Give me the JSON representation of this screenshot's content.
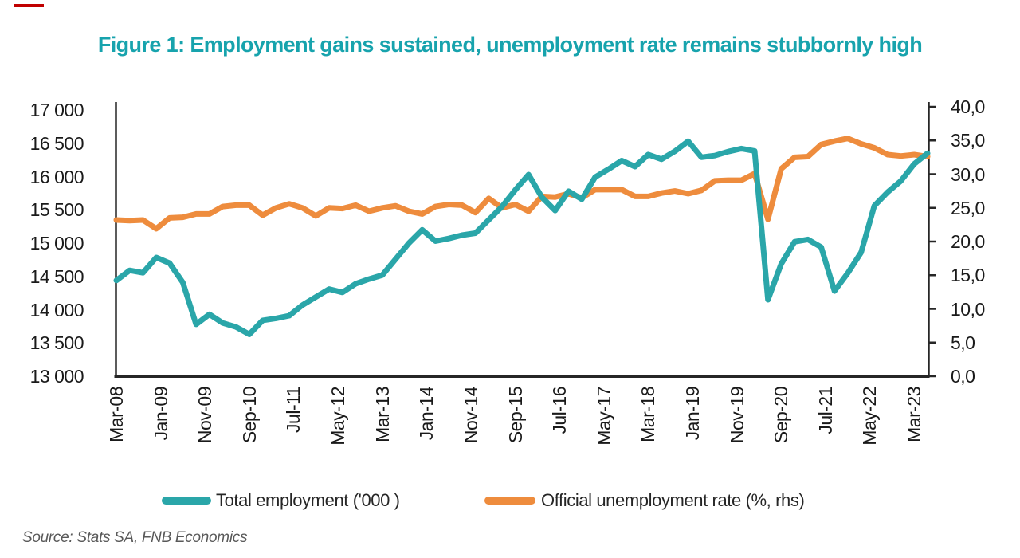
{
  "page": {
    "top_left_dash_color": "#C00000",
    "background": "#FFFFFF"
  },
  "title": {
    "text": "Figure 1: Employment gains sustained, unemployment rate remains stubbornly high",
    "color": "#17A3AD"
  },
  "source_note": "Source: Stats SA, FNB Economics",
  "legend": {
    "items": [
      {
        "label": "Total employment ('000 )",
        "color": "#2AA6A9"
      },
      {
        "label": "Official unemployment rate (%, rhs)",
        "color": "#EE8C3D"
      }
    ]
  },
  "chart_data": {
    "type": "line",
    "title": "Figure 1: Employment gains sustained, unemployment rate remains stubbornly high",
    "grid": false,
    "legend_position": "bottom",
    "x_tick_labels": [
      "Mar-08",
      "Jan-09",
      "Nov-09",
      "Sep-10",
      "Jul-11",
      "May-12",
      "Mar-13",
      "Jan-14",
      "Nov-14",
      "Sep-15",
      "Jul-16",
      "May-17",
      "Mar-18",
      "Jan-19",
      "Nov-19",
      "Sep-20",
      "Jul-21",
      "May-22",
      "Mar-23"
    ],
    "left_axis": {
      "min": 13000,
      "max": 17000,
      "tick_labels": [
        "17 000",
        "16 500",
        "16 000",
        "15 500",
        "15 000",
        "14 500",
        "14 000",
        "13 500",
        "13 000"
      ]
    },
    "right_axis": {
      "min": 0.0,
      "max": 40.0,
      "tick_labels": [
        "40,0",
        "35,0",
        "30,0",
        "25,0",
        "20,0",
        "15,0",
        "10,0",
        "5,0",
        "0,0"
      ]
    },
    "series": [
      {
        "name": "Total employment ('000 )",
        "axis": "left",
        "color": "#2AA6A9",
        "values": [
          14440,
          14590,
          14555,
          14785,
          14700,
          14410,
          13780,
          13930,
          13800,
          13740,
          13630,
          13840,
          13870,
          13910,
          14070,
          14190,
          14310,
          14260,
          14390,
          14460,
          14520,
          14760,
          15000,
          15200,
          15030,
          15070,
          15120,
          15150,
          15350,
          15550,
          15800,
          16030,
          15690,
          15490,
          15780,
          15660,
          15990,
          16110,
          16240,
          16150,
          16330,
          16260,
          16380,
          16530,
          16290,
          16315,
          16375,
          16420,
          16385,
          14150,
          14690,
          15020,
          15055,
          14940,
          14280,
          14550,
          14860,
          15560,
          15765,
          15935,
          16190,
          16350
        ]
      },
      {
        "name": "Official unemployment rate (%, rhs)",
        "axis": "right",
        "color": "#EE8C3D",
        "values": [
          23.2,
          23.1,
          23.2,
          21.9,
          23.5,
          23.6,
          24.1,
          24.1,
          25.2,
          25.4,
          25.4,
          23.9,
          25.0,
          25.6,
          25.0,
          23.8,
          25.0,
          24.9,
          25.4,
          24.5,
          25.0,
          25.3,
          24.5,
          24.1,
          25.2,
          25.5,
          25.4,
          24.3,
          26.4,
          25.0,
          25.5,
          24.5,
          26.7,
          26.6,
          27.1,
          26.5,
          27.7,
          27.7,
          27.7,
          26.7,
          26.7,
          27.2,
          27.5,
          27.1,
          27.6,
          29.0,
          29.1,
          29.1,
          30.1,
          23.3,
          30.8,
          32.5,
          32.6,
          34.4,
          34.9,
          35.3,
          34.5,
          33.9,
          32.9,
          32.7,
          32.9,
          32.6
        ]
      }
    ]
  }
}
